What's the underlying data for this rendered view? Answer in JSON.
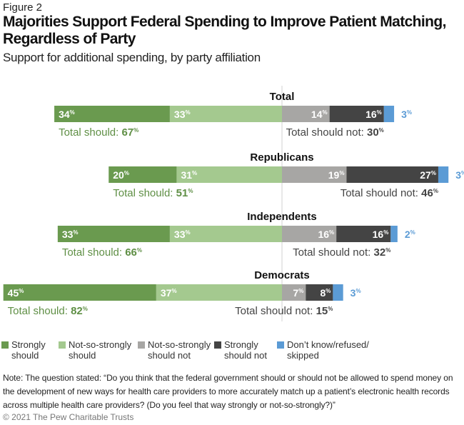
{
  "header": {
    "figure_label": "Figure 2",
    "title": "Majorities Support Federal Spending to Improve Patient Matching, Regardless of Party",
    "subtitle": "Support for additional spending, by party affiliation"
  },
  "chart_data": {
    "type": "bar",
    "orientation": "horizontal diverging stacked",
    "unit": "%",
    "categories": [
      "Total",
      "Republicans",
      "Independents",
      "Democrats"
    ],
    "series": [
      {
        "name": "Strongly should",
        "color": "#6a9a4f",
        "values": [
          34,
          20,
          33,
          45
        ]
      },
      {
        "name": "Not-so-strongly should",
        "color": "#a4c98f",
        "values": [
          33,
          31,
          33,
          37
        ]
      },
      {
        "name": "Not-so-strongly should not",
        "color": "#a7a6a4",
        "values": [
          14,
          19,
          16,
          7
        ]
      },
      {
        "name": "Strongly should not",
        "color": "#444444",
        "values": [
          16,
          27,
          16,
          8
        ]
      },
      {
        "name": "Don't know/refused/skipped",
        "color": "#5b9bd5",
        "values": [
          3,
          3,
          2,
          3
        ]
      }
    ],
    "totals": {
      "should_label": "Total should:",
      "should_not_label": "Total should not:",
      "should": [
        67,
        51,
        66,
        82
      ],
      "should_not": [
        30,
        46,
        32,
        15
      ]
    },
    "legend_placement": "bottom",
    "grid": false
  },
  "legend": [
    {
      "line1": "Strongly",
      "line2": "should"
    },
    {
      "line1": "Not-so-strongly",
      "line2": "should"
    },
    {
      "line1": "Not-so-strongly",
      "line2": "should not"
    },
    {
      "line1": "Strongly",
      "line2": "should not"
    },
    {
      "line1": "Don’t know/refused/",
      "line2": "skipped"
    }
  ],
  "footer": {
    "note": "Note: The question stated: “Do you think that the federal government should or should not be allowed to spend money on the development of new ways for health care providers to more accurately match up a patient’s electronic health records across multiple health care providers? (Do you feel that way strongly or not-so-strongly?)”",
    "copyright": "© 2021 The Pew Charitable Trusts"
  }
}
